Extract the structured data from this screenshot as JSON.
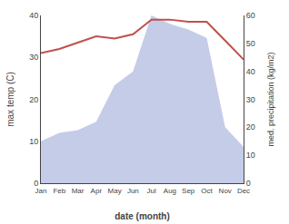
{
  "chart_data": {
    "type": "line",
    "categories": [
      "Jan",
      "Feb",
      "Mar",
      "Apr",
      "May",
      "Jun",
      "Jul",
      "Aug",
      "Sep",
      "Oct",
      "Nov",
      "Dec"
    ],
    "series": [
      {
        "type": "area",
        "color": "#c5cce8",
        "axis": "y2",
        "values": [
          15,
          18,
          19,
          22,
          35,
          40,
          60,
          57,
          55,
          52,
          20,
          13
        ]
      },
      {
        "type": "line",
        "color": "#c0504d",
        "values": [
          31,
          32,
          33.5,
          35,
          34.5,
          35.5,
          39,
          39,
          38.5,
          38.5,
          34,
          29.5
        ]
      }
    ],
    "xlabel": "date (month)",
    "ylabel": "max temp (C)",
    "y2label": "med. precipitation (kg/m2)",
    "ylim": [
      0,
      40
    ],
    "yticks": [
      0,
      10,
      20,
      30,
      40
    ],
    "y2lim": [
      0,
      60
    ],
    "y2ticks": [
      0,
      10,
      20,
      30,
      40,
      50,
      60
    ],
    "grid": false
  }
}
